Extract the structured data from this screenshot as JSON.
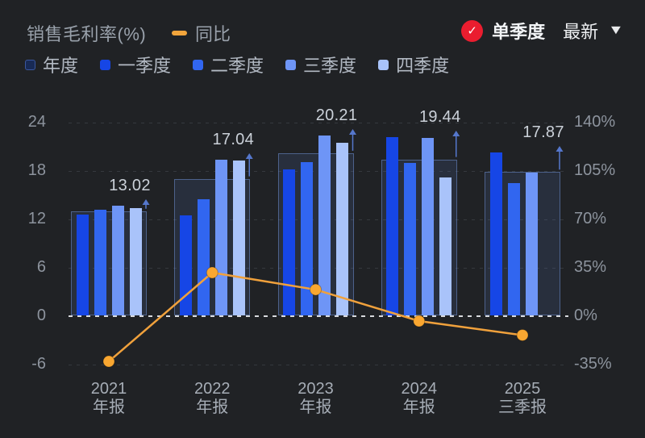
{
  "header": {
    "title": "销售毛利率(%)",
    "yoy_label": "同比",
    "single_quarter_label": "单季度",
    "latest_label": "最新"
  },
  "legend": {
    "series": [
      {
        "name": "年度",
        "type": "annual"
      },
      {
        "name": "一季度",
        "color": "#1646e6"
      },
      {
        "name": "二季度",
        "color": "#3166f0"
      },
      {
        "name": "三季度",
        "color": "#6e95f6"
      },
      {
        "name": "四季度",
        "color": "#a9c3fa"
      }
    ]
  },
  "colors": {
    "background": "#202225",
    "annual_fill": "rgba(93,130,215,0.14)",
    "annual_border": "rgba(108,140,205,0.55)",
    "line": "#f0a13c",
    "point": "#f9a731",
    "arrow": "#5577cc",
    "check_red": "#ea1d2f"
  },
  "chart_data": {
    "type": "bar+line",
    "title": "销售毛利率(%)",
    "categories": [
      {
        "year": "2021",
        "period": "年报"
      },
      {
        "year": "2022",
        "period": "年报"
      },
      {
        "year": "2023",
        "period": "年报"
      },
      {
        "year": "2024",
        "period": "年报"
      },
      {
        "year": "2025",
        "period": "三季报"
      }
    ],
    "left_axis": {
      "ticks": [
        24,
        18,
        12,
        6,
        0,
        -6
      ],
      "range": [
        -6,
        24
      ]
    },
    "right_axis": {
      "ticks_percent": [
        140,
        105,
        70,
        35,
        0,
        -35
      ],
      "range": [
        -35,
        140
      ]
    },
    "annual_series": {
      "name": "年度",
      "values": [
        13.02,
        17.04,
        20.21,
        19.44,
        17.87
      ],
      "labels": [
        "13.02",
        "17.04",
        "20.21",
        "19.44",
        "17.87"
      ]
    },
    "quarter_series": [
      {
        "name": "一季度",
        "values": [
          12.6,
          12.5,
          18.2,
          22.2,
          20.3
        ]
      },
      {
        "name": "二季度",
        "values": [
          13.2,
          14.5,
          19.1,
          19.0,
          16.5
        ]
      },
      {
        "name": "三季度",
        "values": [
          13.7,
          19.4,
          22.4,
          22.1,
          17.8
        ]
      },
      {
        "name": "四季度",
        "values": [
          13.4,
          19.3,
          21.5,
          17.2,
          null
        ]
      }
    ],
    "line_series": {
      "name": "同比",
      "unit": "%",
      "values": [
        -32.7,
        31.5,
        19.2,
        -3.5,
        -13.7
      ]
    },
    "legend_position": "top",
    "grid": "dashed-horizontal"
  }
}
